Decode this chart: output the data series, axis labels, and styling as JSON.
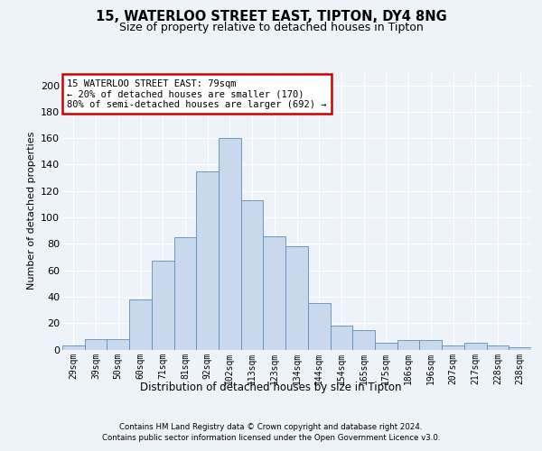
{
  "title_line1": "15, WATERLOO STREET EAST, TIPTON, DY4 8NG",
  "title_line2": "Size of property relative to detached houses in Tipton",
  "xlabel": "Distribution of detached houses by size in Tipton",
  "ylabel": "Number of detached properties",
  "categories": [
    "29sqm",
    "39sqm",
    "50sqm",
    "60sqm",
    "71sqm",
    "81sqm",
    "92sqm",
    "102sqm",
    "113sqm",
    "123sqm",
    "134sqm",
    "144sqm",
    "154sqm",
    "165sqm",
    "175sqm",
    "186sqm",
    "196sqm",
    "207sqm",
    "217sqm",
    "228sqm",
    "238sqm"
  ],
  "values": [
    3,
    8,
    8,
    38,
    67,
    85,
    135,
    160,
    113,
    86,
    78,
    35,
    18,
    15,
    5,
    7,
    7,
    3,
    5,
    3,
    2
  ],
  "bar_color": "#c9d9ed",
  "bar_edge_color": "#5b8db8",
  "annotation_text": "15 WATERLOO STREET EAST: 79sqm\n← 20% of detached houses are smaller (170)\n80% of semi-detached houses are larger (692) →",
  "annotation_box_color": "#ffffff",
  "annotation_box_edge_color": "#cc0000",
  "footer_line1": "Contains HM Land Registry data © Crown copyright and database right 2024.",
  "footer_line2": "Contains public sector information licensed under the Open Government Licence v3.0.",
  "ylim": [
    0,
    210
  ],
  "yticks": [
    0,
    20,
    40,
    60,
    80,
    100,
    120,
    140,
    160,
    180,
    200
  ],
  "bg_color": "#eef2f9",
  "plot_bg_color": "#eef2f9"
}
